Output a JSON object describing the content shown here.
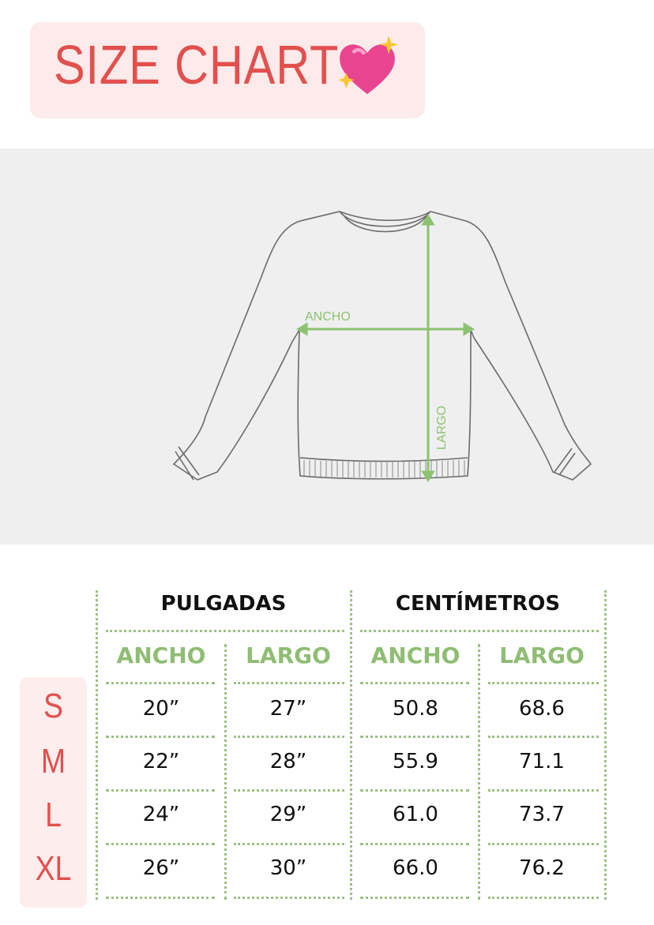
{
  "title": "SIZE CHART",
  "title_icon": "sparkling-heart-emoji",
  "diagram": {
    "width_label": "ANCHO",
    "length_label": "LARGO"
  },
  "colors": {
    "accent_red": "#e2504d",
    "accent_green": "#8fbd74",
    "pink_bg": "#fdeaea"
  },
  "table": {
    "groups": [
      "PULGADAS",
      "CENTÍMETROS"
    ],
    "subheaders": [
      "ANCHO",
      "LARGO",
      "ANCHO",
      "LARGO"
    ],
    "sizes": [
      "S",
      "M",
      "L",
      "XL"
    ],
    "rows": [
      [
        "20”",
        "27”",
        "50.8",
        "68.6"
      ],
      [
        "22”",
        "28”",
        "55.9",
        "71.1"
      ],
      [
        "24”",
        "29”",
        "61.0",
        "73.7"
      ],
      [
        "26”",
        "30”",
        "66.0",
        "76.2"
      ]
    ]
  }
}
